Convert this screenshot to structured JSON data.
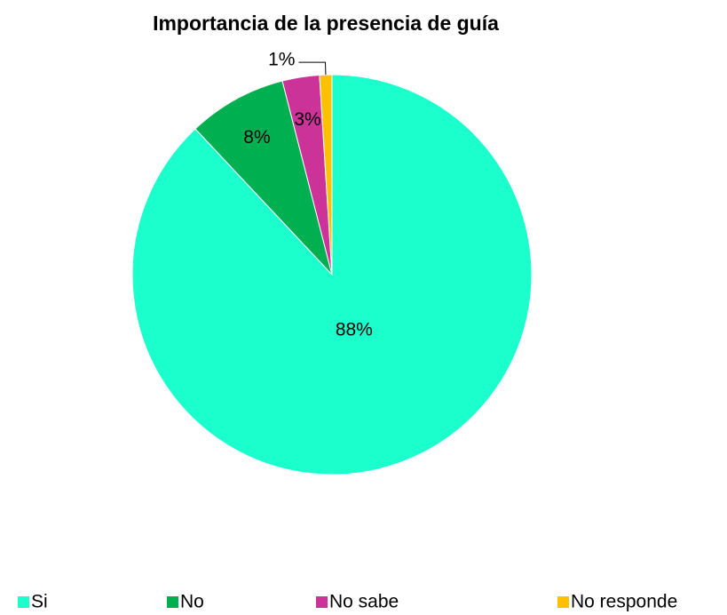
{
  "chart_data": {
    "type": "pie",
    "title": "Importancia de la presencia de guía",
    "categories": [
      "Si",
      "No",
      "No sabe",
      "No responde"
    ],
    "values": [
      88,
      8,
      3,
      1
    ],
    "value_labels": [
      "88%",
      "8%",
      "3%",
      "1%"
    ],
    "colors": [
      "#1affcc",
      "#00b050",
      "#cc3399",
      "#ffc000"
    ],
    "legend": "bottom"
  }
}
